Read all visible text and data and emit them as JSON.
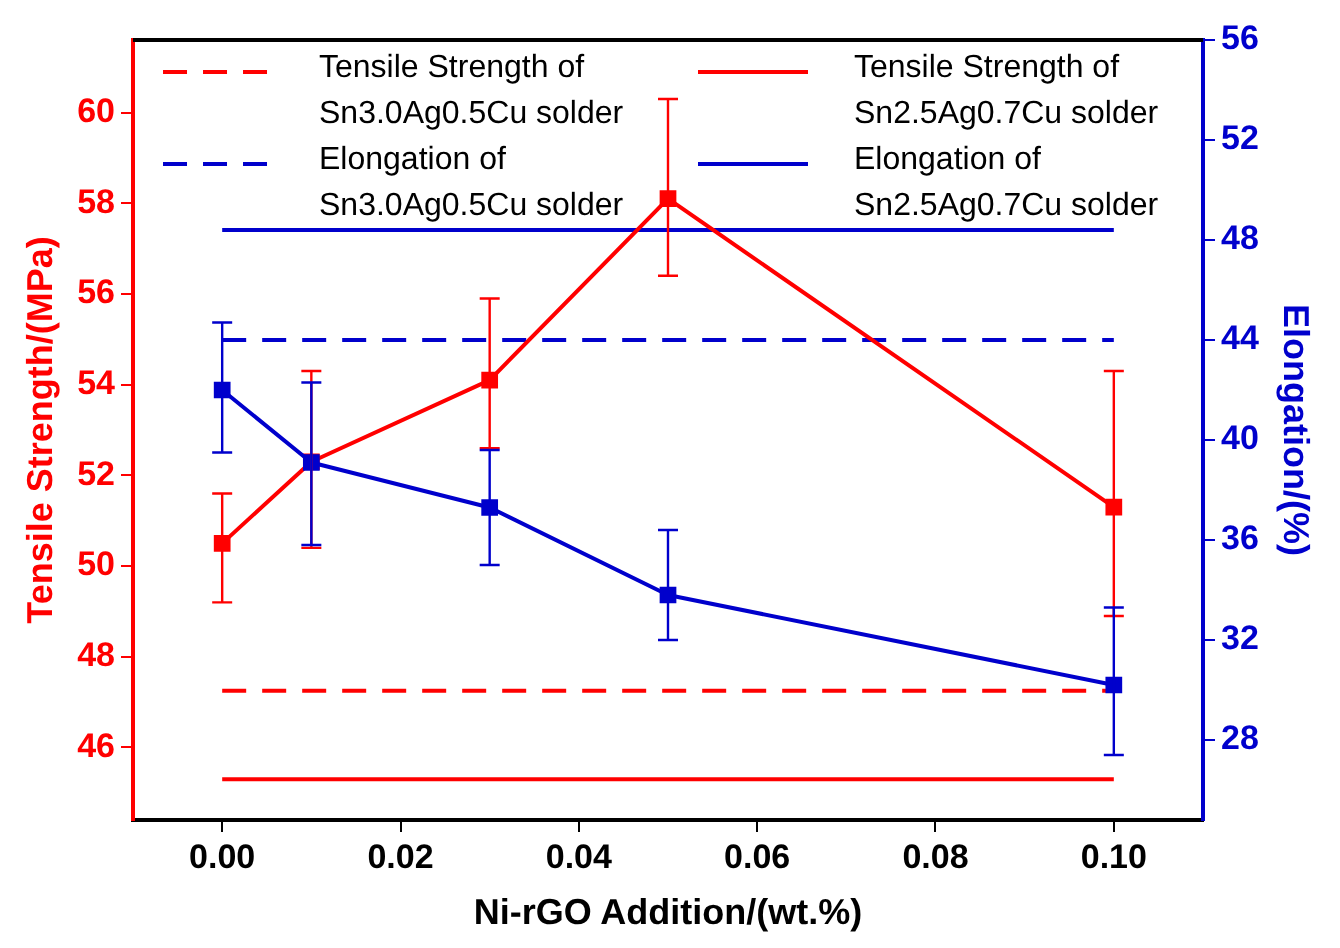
{
  "chart_data": {
    "type": "line",
    "xlabel": "Ni-rGO Addition/(wt.%)",
    "ylabel": "Tensile Strength/(MPa)",
    "y2label": "Elongation/(%)",
    "xlim": [
      -0.01,
      0.11
    ],
    "xticks": [
      {
        "value": 0,
        "label": "0.00"
      },
      {
        "value": 0.02,
        "label": "0.02"
      },
      {
        "value": 0.04,
        "label": "0.04"
      },
      {
        "value": 0.06,
        "label": "0.06"
      },
      {
        "value": 0.08,
        "label": "0.08"
      },
      {
        "value": 0.1,
        "label": "0.10"
      }
    ],
    "ylim": [
      44.4,
      61.6
    ],
    "yticks": [
      46,
      48,
      50,
      52,
      54,
      56,
      58,
      60
    ],
    "y2lim": [
      24.8,
      56
    ],
    "y2ticks": [
      28,
      32,
      36,
      40,
      44,
      48,
      52,
      56
    ],
    "grid": false,
    "legend": "top",
    "marker": "square",
    "series": [
      {
        "name": "Tensile Strength of Sn3.0Ag0.5Cu solder",
        "color": "#ff0000",
        "x": [
          0,
          0.1
        ],
        "values": [
          47.25,
          47.25
        ],
        "line_style": "dashed",
        "marker": "none"
      },
      {
        "name": "Elongation of Sn3.0Ag0.5Cu solder",
        "color": "#0000cc",
        "x": [
          0,
          0.1
        ],
        "values": [
          44.0,
          44.0
        ],
        "line_style": "dashed",
        "marker": "none",
        "axis": "y2"
      },
      {
        "name": "Tensile Strength of Sn2.5Ag0.7Cu solder",
        "color": "#ff0000",
        "x": [
          0,
          0.1
        ],
        "values": [
          45.3,
          45.3
        ],
        "line_style": "solid",
        "marker": "none"
      },
      {
        "name": "Elongation of Sn2.5Ag0.7Cu solder",
        "color": "#0000cc",
        "x": [
          0,
          0.1
        ],
        "values": [
          48.4,
          48.4
        ],
        "line_style": "solid",
        "marker": "none",
        "axis": "y2"
      },
      {
        "color": "#ff0000",
        "x": [
          0,
          0.01,
          0.03,
          0.05,
          0.1
        ],
        "values": [
          50.5,
          52.3,
          54.1,
          58.1,
          51.3
        ],
        "errors": [
          [
            49.2,
            51.6
          ],
          [
            50.4,
            54.3
          ],
          [
            52.6,
            55.9
          ],
          [
            56.4,
            60.3
          ],
          [
            48.9,
            54.3
          ]
        ]
      },
      {
        "color": "#0000cc",
        "axis": "y2",
        "x": [
          0,
          0.01,
          0.03,
          0.05,
          0.1
        ],
        "values": [
          42.0,
          39.1,
          37.3,
          33.8,
          30.2
        ],
        "errors": [
          [
            39.5,
            44.7
          ],
          [
            35.8,
            42.3
          ],
          [
            35.0,
            39.6
          ],
          [
            32.0,
            36.4
          ],
          [
            27.4,
            33.3
          ]
        ]
      }
    ]
  }
}
